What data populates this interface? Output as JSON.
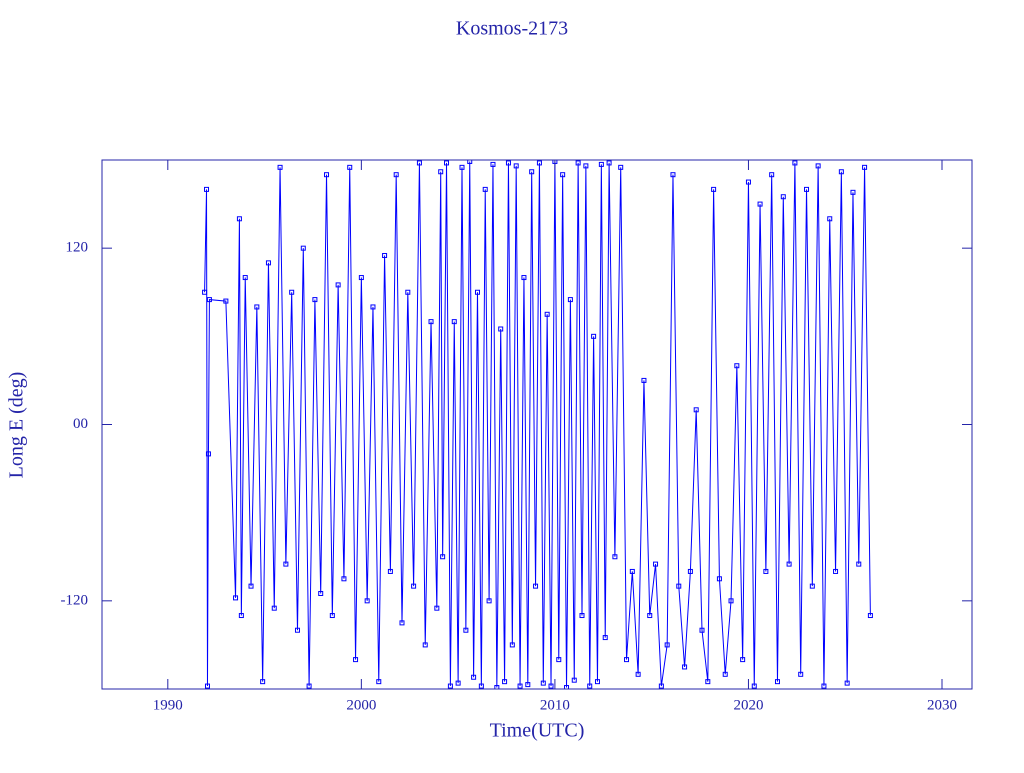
{
  "chart_data": {
    "type": "line",
    "title": "Kosmos-2173",
    "xlabel": "Time(UTC)",
    "ylabel": "Long E (deg)",
    "xlim": [
      1986.6,
      2031.55
    ],
    "xticks": [
      1990,
      2000,
      2010,
      2020,
      2030
    ],
    "ylim": [
      -180,
      180
    ],
    "yticks": [
      120,
      {
        "value": 0,
        "label": "00"
      },
      -120
    ],
    "series": [
      {
        "name": "Kosmos-2173",
        "color": "#0000ff",
        "x": [
          1991.9,
          1992.0,
          1992.05,
          1992.1,
          1992.15,
          1993.0,
          1993.5,
          1993.7,
          1993.8,
          1994.0,
          1994.3,
          1994.6,
          1994.9,
          1995.2,
          1995.5,
          1995.8,
          1996.1,
          1996.4,
          1996.7,
          1997.0,
          1997.3,
          1997.6,
          1997.9,
          1998.2,
          1998.5,
          1998.8,
          1999.1,
          1999.4,
          1999.7,
          2000.0,
          2000.3,
          2000.6,
          2000.9,
          2001.2,
          2001.5,
          2001.8,
          2002.1,
          2002.4,
          2002.7,
          2003.0,
          2003.3,
          2003.6,
          2003.9,
          2004.1,
          2004.2,
          2004.4,
          2004.6,
          2004.8,
          2005.0,
          2005.2,
          2005.4,
          2005.6,
          2005.8,
          2006.0,
          2006.2,
          2006.4,
          2006.6,
          2006.8,
          2007.0,
          2007.2,
          2007.4,
          2007.6,
          2007.8,
          2008.0,
          2008.2,
          2008.4,
          2008.6,
          2008.8,
          2009.0,
          2009.2,
          2009.4,
          2009.6,
          2009.8,
          2010.0,
          2010.2,
          2010.4,
          2010.6,
          2010.8,
          2011.0,
          2011.2,
          2011.4,
          2011.6,
          2011.8,
          2012.0,
          2012.2,
          2012.4,
          2012.6,
          2012.8,
          2013.1,
          2013.4,
          2013.7,
          2014.0,
          2014.3,
          2014.6,
          2014.9,
          2015.2,
          2015.5,
          2015.8,
          2016.1,
          2016.4,
          2016.7,
          2017.0,
          2017.3,
          2017.6,
          2017.9,
          2018.2,
          2018.5,
          2018.8,
          2019.1,
          2019.4,
          2019.7,
          2020.0,
          2020.3,
          2020.6,
          2020.9,
          2021.2,
          2021.5,
          2021.8,
          2022.1,
          2022.4,
          2022.7,
          2023.0,
          2023.3,
          2023.6,
          2023.9,
          2024.2,
          2024.5,
          2024.8,
          2025.1,
          2025.4,
          2025.7,
          2026.0,
          2026.3
        ],
        "values": [
          90,
          160,
          -178,
          -20,
          85,
          84,
          -118,
          140,
          -130,
          100,
          -110,
          80,
          -175,
          110,
          -125,
          175,
          -95,
          90,
          -140,
          120,
          -178,
          85,
          -115,
          170,
          -130,
          95,
          -105,
          175,
          -160,
          100,
          -120,
          80,
          -175,
          115,
          -100,
          170,
          -135,
          90,
          -110,
          178,
          -150,
          70,
          -125,
          172,
          -90,
          178,
          -178,
          70,
          -176,
          175,
          -140,
          179,
          -172,
          90,
          -178,
          160,
          -120,
          177,
          -179,
          65,
          -175,
          178,
          -150,
          176,
          -178,
          100,
          -177,
          172,
          -110,
          178,
          -176,
          75,
          -178,
          179,
          -160,
          170,
          -179,
          85,
          -174,
          178,
          -130,
          176,
          -178,
          60,
          -175,
          177,
          -145,
          178,
          -90,
          175,
          -160,
          -100,
          -170,
          30,
          -130,
          -95,
          -178,
          -150,
          170,
          -110,
          -165,
          -100,
          10,
          -140,
          -175,
          160,
          -105,
          -170,
          -120,
          40,
          -160,
          165,
          -178,
          150,
          -100,
          170,
          -175,
          155,
          -95,
          178,
          -170,
          160,
          -110,
          176,
          -178,
          140,
          -100,
          172,
          -176,
          158,
          -95,
          175,
          -130
        ]
      }
    ]
  }
}
